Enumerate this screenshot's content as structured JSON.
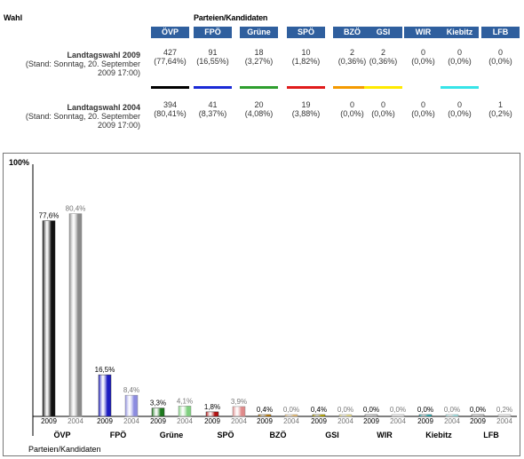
{
  "table": {
    "col_header_wahl": "Wahl",
    "col_header_parties": "Parteien/Kandidaten",
    "parties": [
      "ÖVP",
      "FPÖ",
      "Grüne",
      "SPÖ",
      "BZÖ",
      "GSI",
      "WIR",
      "Kiebitz",
      "LFB"
    ],
    "party_colors": [
      "#000000",
      "#1a2ad6",
      "#2e9e2e",
      "#e01b1b",
      "#f49a00",
      "#ffea00",
      "#ffffff",
      "#37e4e8",
      "#ffffff"
    ],
    "rows": [
      {
        "label": "Landtagswahl 2009",
        "sublabel": "(Stand: Sonntag, 20. September",
        "sublabel2": "2009 17:00)",
        "votes": [
          "427",
          "91",
          "18",
          "10",
          "2",
          "2",
          "0",
          "0",
          "0"
        ],
        "percents": [
          "(77,64%)",
          "(16,55%)",
          "(3,27%)",
          "(1,82%)",
          "(0,36%)",
          "(0,36%)",
          "(0,0%)",
          "(0,0%)",
          "(0,0%)"
        ]
      },
      {
        "label": "Landtagswahl 2004",
        "sublabel": "(Stand: Sonntag, 20. September",
        "sublabel2": "2009 17:00)",
        "votes": [
          "394",
          "41",
          "20",
          "19",
          "0",
          "0",
          "0",
          "0",
          "1"
        ],
        "percents": [
          "(80,41%)",
          "(8,37%)",
          "(4,08%)",
          "(3,88%)",
          "(0,0%)",
          "(0,0%)",
          "(0,0%)",
          "(0,0%)",
          "(0,2%)"
        ]
      }
    ]
  },
  "chart_data": {
    "type": "bar",
    "xlabel": "Parteien/Kandidaten",
    "y_top_label": "100%",
    "ylim": [
      0,
      100
    ],
    "categories": [
      "ÖVP",
      "FPÖ",
      "Grüne",
      "SPÖ",
      "BZÖ",
      "GSI",
      "WIR",
      "Kiebitz",
      "LFB"
    ],
    "series": [
      {
        "name": "2009",
        "values": [
          77.6,
          16.5,
          3.3,
          1.8,
          0.4,
          0.4,
          0.0,
          0.0,
          0.0
        ],
        "labels": [
          "77,6%",
          "16,5%",
          "3,3%",
          "1,8%",
          "0,4%",
          "0,4%",
          "0,0%",
          "0,0%",
          "0,0%"
        ]
      },
      {
        "name": "2004",
        "values": [
          80.4,
          8.4,
          4.1,
          3.9,
          0.0,
          0.0,
          0.0,
          0.0,
          0.2
        ],
        "labels": [
          "80,4%",
          "8,4%",
          "4,1%",
          "3,9%",
          "0,0%",
          "0,0%",
          "0,0%",
          "0,0%",
          "0,2%"
        ]
      }
    ],
    "colors_2009": [
      "#111111",
      "#1c1cc0",
      "#1e7a1e",
      "#b41414",
      "#d88a00",
      "#d6c400",
      "#dddddd",
      "#2ec8cc",
      "#dddddd"
    ],
    "colors_2004": [
      "#8a8a8a",
      "#8c8ce0",
      "#7fcf7f",
      "#e08a8a",
      "#f2c06a",
      "#efe27a",
      "#eeeeee",
      "#9ee9ec",
      "#eeeeee"
    ],
    "grid": false,
    "legend": "none"
  }
}
